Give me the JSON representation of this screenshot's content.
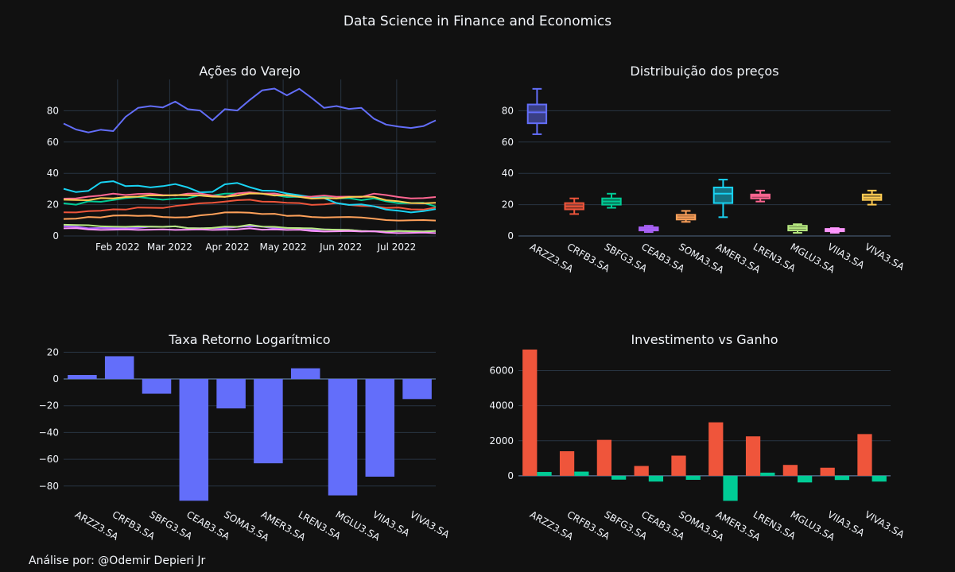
{
  "title": "Data Science in Finance and Economics",
  "footer": "Análise por: @Odemir Depieri Jr",
  "colors": {
    "background": "#111111",
    "grid": "#283442",
    "text": "#f2f5fa",
    "series": [
      "#636efa",
      "#EF553B",
      "#00cc96",
      "#ab63fa",
      "#FFA15A",
      "#19d3f3",
      "#FF6692",
      "#B6E880",
      "#FF97FF",
      "#FECB52"
    ]
  },
  "chart_data": [
    {
      "type": "line",
      "title": "Ações do Varejo",
      "x_ticks": [
        "Feb 2022",
        "Mar 2022",
        "Apr 2022",
        "May 2022",
        "Jun 2022",
        "Jul 2022"
      ],
      "x_range": [
        "2022-01-03",
        "2022-07-22"
      ],
      "y_ticks": [
        0,
        20,
        40,
        60,
        80
      ],
      "ylim": [
        0,
        100
      ],
      "series": [
        {
          "name": "ARZZ3.SA",
          "values": [
            72,
            68,
            66,
            68,
            67,
            76,
            82,
            83,
            82,
            86,
            81,
            80,
            74,
            81,
            80,
            87,
            93,
            94,
            90,
            94,
            88,
            82,
            83,
            81,
            82,
            75,
            71,
            70,
            69,
            70,
            74
          ]
        },
        {
          "name": "CRFB3.SA",
          "values": [
            15,
            15,
            16,
            16,
            17,
            17,
            18,
            18,
            18,
            19,
            20,
            21,
            21,
            22,
            23,
            23,
            22,
            22,
            21,
            21,
            20,
            20,
            21,
            20,
            19,
            19,
            18,
            18,
            17,
            17,
            18
          ]
        },
        {
          "name": "SBFG3.SA",
          "values": [
            21,
            20,
            22,
            22,
            23,
            24,
            25,
            24,
            23,
            24,
            24,
            26,
            26,
            27,
            27,
            28,
            27,
            26,
            25,
            25,
            24,
            25,
            24,
            24,
            23,
            24,
            22,
            21,
            21,
            21,
            19
          ]
        },
        {
          "name": "CEAB3.SA",
          "values": [
            6,
            6,
            5,
            5,
            5,
            5,
            5,
            6,
            6,
            6,
            5,
            5,
            5,
            5,
            6,
            6,
            6,
            5,
            5,
            5,
            4,
            4,
            4,
            4,
            3,
            3,
            3,
            3,
            3,
            3,
            3
          ]
        },
        {
          "name": "SOMA3.SA",
          "values": [
            11,
            11,
            12,
            12,
            13,
            13,
            13,
            13,
            12,
            12,
            12,
            13,
            14,
            15,
            15,
            15,
            14,
            14,
            13,
            13,
            12,
            12,
            12,
            12,
            12,
            11,
            10,
            10,
            10,
            10,
            10
          ]
        },
        {
          "name": "AMER3.SA",
          "values": [
            30,
            28,
            29,
            34,
            35,
            32,
            32,
            31,
            32,
            33,
            31,
            28,
            28,
            33,
            34,
            31,
            29,
            29,
            27,
            26,
            25,
            24,
            21,
            20,
            20,
            19,
            17,
            16,
            15,
            16,
            17
          ]
        },
        {
          "name": "LREN3.SA",
          "values": [
            24,
            24,
            25,
            26,
            27,
            26,
            27,
            27,
            26,
            26,
            27,
            27,
            26,
            25,
            27,
            28,
            27,
            27,
            26,
            25,
            25,
            26,
            25,
            25,
            25,
            27,
            26,
            25,
            24,
            24,
            25
          ]
        },
        {
          "name": "MGLU3.SA",
          "values": [
            7,
            7,
            7,
            6,
            6,
            6,
            6,
            6,
            6,
            6,
            5,
            5,
            5,
            6,
            6,
            7,
            6,
            6,
            5,
            5,
            5,
            4,
            4,
            4,
            3,
            3,
            3,
            3,
            3,
            3,
            3
          ]
        },
        {
          "name": "VIIA3.SA",
          "values": [
            5,
            5,
            4,
            4,
            4,
            4,
            4,
            4,
            4,
            4,
            4,
            4,
            4,
            4,
            4,
            5,
            4,
            4,
            4,
            4,
            3,
            3,
            3,
            3,
            3,
            3,
            2,
            2,
            2,
            2,
            2
          ]
        },
        {
          "name": "VIVA3.SA",
          "values": [
            23,
            23,
            23,
            24,
            24,
            25,
            25,
            26,
            26,
            26,
            26,
            26,
            25,
            25,
            26,
            27,
            27,
            26,
            26,
            25,
            24,
            24,
            24,
            25,
            25,
            25,
            23,
            22,
            21,
            21,
            21
          ]
        }
      ]
    },
    {
      "type": "box",
      "title": "Distribuição dos preços",
      "categories": [
        "ARZZ3.SA",
        "CRFB3.SA",
        "SBFG3.SA",
        "CEAB3.SA",
        "SOMA3.SA",
        "AMER3.SA",
        "LREN3.SA",
        "MGLU3.SA",
        "VIIA3.SA",
        "VIVA3.SA"
      ],
      "y_ticks": [
        0,
        20,
        40,
        60,
        80
      ],
      "ylim": [
        0,
        100
      ],
      "boxes": [
        {
          "min": 65,
          "q1": 72,
          "median": 79,
          "q3": 84,
          "max": 94
        },
        {
          "min": 14,
          "q1": 17,
          "median": 19,
          "q3": 21,
          "max": 24
        },
        {
          "min": 18,
          "q1": 20,
          "median": 22,
          "q3": 24,
          "max": 27
        },
        {
          "min": 2.5,
          "q1": 3.5,
          "median": 4.5,
          "q3": 5.5,
          "max": 6.5
        },
        {
          "min": 9,
          "q1": 10.5,
          "median": 12,
          "q3": 13.5,
          "max": 16
        },
        {
          "min": 12,
          "q1": 21,
          "median": 27,
          "q3": 31,
          "max": 36
        },
        {
          "min": 22,
          "q1": 24,
          "median": 25.5,
          "q3": 26.5,
          "max": 29
        },
        {
          "min": 2,
          "q1": 3.5,
          "median": 5,
          "q3": 6.5,
          "max": 7.5
        },
        {
          "min": 2,
          "q1": 3,
          "median": 3.5,
          "q3": 4.5,
          "max": 5
        },
        {
          "min": 20,
          "q1": 23,
          "median": 24.5,
          "q3": 26.5,
          "max": 29
        }
      ]
    },
    {
      "type": "bar",
      "title": "Taxa Retorno Logarítmico",
      "categories": [
        "ARZZ3.SA",
        "CRFB3.SA",
        "SBFG3.SA",
        "CEAB3.SA",
        "SOMA3.SA",
        "AMER3.SA",
        "LREN3.SA",
        "MGLU3.SA",
        "VIIA3.SA",
        "VIVA3.SA"
      ],
      "values": [
        3,
        17,
        -11,
        -91,
        -22,
        -63,
        8,
        -87,
        -73,
        -15
      ],
      "y_ticks": [
        20,
        0,
        -20,
        -40,
        -60,
        -80
      ],
      "ylim": [
        -92,
        22
      ]
    },
    {
      "type": "bar",
      "title": "Investimento vs Ganho",
      "categories": [
        "ARZZ3.SA",
        "CRFB3.SA",
        "SBFG3.SA",
        "CEAB3.SA",
        "SOMA3.SA",
        "AMER3.SA",
        "LREN3.SA",
        "MGLU3.SA",
        "VIIA3.SA",
        "VIVA3.SA"
      ],
      "series": [
        {
          "values": [
            7200,
            1400,
            2050,
            560,
            1150,
            3050,
            2250,
            620,
            460,
            2380
          ]
        },
        {
          "values": [
            220,
            240,
            -220,
            -330,
            -230,
            -1430,
            180,
            -380,
            -240,
            -330
          ]
        }
      ],
      "y_ticks": [
        0,
        2000,
        4000,
        6000
      ],
      "ylim": [
        -1500,
        7200
      ]
    }
  ]
}
